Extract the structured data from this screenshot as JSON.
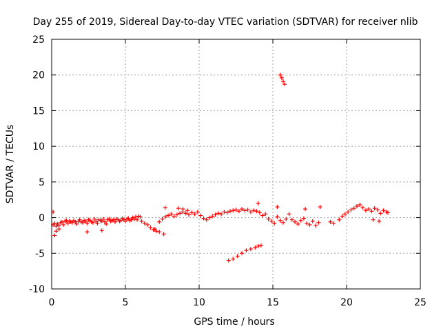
{
  "chart_data": {
    "type": "scatter",
    "title": "Day 255 of 2019, Sidereal Day-to-day VTEC variation (SDTVAR) for receiver nlib",
    "xlabel": "GPS time / hours",
    "ylabel": "SDTVAR / TECUs",
    "xlim": [
      0,
      25
    ],
    "ylim": [
      -10,
      25
    ],
    "xticks": [
      0,
      5,
      10,
      15,
      20,
      25
    ],
    "yticks": [
      -10,
      -5,
      0,
      5,
      10,
      15,
      20,
      25
    ],
    "grid": true,
    "marker": "+",
    "series": [
      {
        "name": "SDTVAR",
        "color": "#ff0000",
        "x": [
          0.1,
          0.2,
          0.3,
          0.4,
          0.5,
          0.6,
          0.7,
          0.8,
          0.9,
          1.0,
          1.1,
          1.2,
          1.3,
          1.4,
          1.5,
          1.6,
          1.7,
          1.8,
          1.9,
          2.0,
          2.1,
          2.2,
          2.3,
          2.4,
          2.5,
          2.6,
          2.7,
          2.8,
          2.9,
          3.0,
          3.1,
          3.2,
          3.3,
          3.4,
          3.5,
          3.6,
          3.7,
          3.8,
          3.9,
          4.0,
          4.1,
          4.2,
          4.3,
          4.4,
          4.5,
          4.6,
          4.7,
          4.8,
          4.9,
          5.0,
          5.1,
          5.2,
          5.3,
          5.4,
          5.5,
          5.6,
          5.7,
          5.8,
          5.9,
          6.0,
          6.1,
          6.3,
          6.5,
          6.7,
          6.9,
          7.1,
          7.3,
          7.5,
          7.7,
          7.9,
          8.1,
          8.3,
          8.5,
          8.7,
          8.9,
          9.1,
          9.3,
          9.5,
          9.7,
          9.9,
          10.1,
          10.3,
          10.5,
          10.7,
          10.9,
          11.1,
          11.3,
          11.5,
          11.7,
          11.9,
          12.1,
          12.3,
          12.5,
          12.7,
          12.9,
          13.1,
          13.3,
          13.5,
          13.7,
          13.9,
          14.1,
          14.3,
          14.5,
          14.7,
          14.9,
          15.1,
          15.3,
          15.5,
          15.7,
          15.9,
          16.1,
          16.3,
          16.5,
          16.7,
          16.9,
          17.1,
          17.3,
          17.5,
          17.7,
          17.9,
          18.1,
          18.9,
          19.1,
          19.5,
          19.7,
          19.9,
          20.1,
          20.3,
          20.5,
          20.7,
          20.9,
          21.1,
          21.3,
          21.5,
          21.7,
          21.9,
          22.1,
          22.3,
          22.5,
          22.7,
          22.8,
          0.2,
          0.3,
          0.5,
          2.4,
          3.4,
          7.0,
          7.3,
          7.6,
          8.6,
          9.2,
          12.0,
          12.3,
          12.6,
          12.9,
          13.2,
          13.5,
          13.8,
          14.0,
          14.2,
          15.5,
          15.6,
          15.7,
          15.8,
          0.1,
          7.7,
          8.9,
          14.0,
          15.3,
          17.2,
          18.2,
          21.8,
          22.2
        ],
        "y": [
          -1.0,
          -0.8,
          -1.2,
          -0.9,
          -1.1,
          -0.7,
          -0.6,
          -1.0,
          -0.5,
          -0.4,
          -0.8,
          -0.5,
          -0.6,
          -0.7,
          -0.4,
          -0.6,
          -0.9,
          -0.5,
          -0.3,
          -0.6,
          -0.7,
          -0.4,
          -0.5,
          -0.8,
          -0.3,
          -0.4,
          -0.6,
          -0.7,
          -0.2,
          -0.5,
          -0.8,
          -0.3,
          -0.4,
          -0.5,
          -0.2,
          -0.6,
          -0.9,
          -0.3,
          -0.2,
          -0.5,
          -0.4,
          -0.3,
          -0.6,
          -0.2,
          -0.3,
          -0.5,
          -0.4,
          -0.1,
          -0.3,
          -0.5,
          -0.2,
          -0.1,
          -0.4,
          -0.3,
          0.0,
          -0.2,
          0.1,
          -0.3,
          0.2,
          0.1,
          -0.5,
          -0.8,
          -1.0,
          -1.4,
          -1.7,
          -1.9,
          -0.6,
          -0.2,
          0.1,
          0.3,
          0.5,
          0.2,
          0.4,
          0.6,
          0.8,
          0.6,
          0.4,
          0.7,
          0.5,
          0.8,
          0.3,
          -0.1,
          -0.3,
          0.0,
          0.2,
          0.4,
          0.6,
          0.5,
          0.8,
          0.7,
          0.9,
          1.0,
          1.1,
          0.9,
          1.2,
          1.0,
          1.1,
          0.8,
          1.0,
          0.9,
          0.7,
          0.3,
          0.5,
          -0.2,
          -0.5,
          -0.8,
          0.1,
          -0.4,
          -0.7,
          -0.2,
          0.5,
          -0.3,
          -0.6,
          -0.9,
          -0.4,
          -0.1,
          -0.8,
          -1.0,
          -0.5,
          -1.1,
          -0.7,
          -0.6,
          -0.8,
          -0.3,
          0.2,
          0.5,
          0.8,
          1.1,
          1.3,
          1.6,
          1.8,
          1.4,
          1.0,
          1.2,
          0.9,
          1.3,
          1.1,
          0.6,
          1.0,
          0.8,
          0.7,
          -2.5,
          -1.9,
          -1.6,
          -2.0,
          -1.8,
          -1.6,
          -2.0,
          -2.3,
          1.3,
          1.0,
          -6.0,
          -5.8,
          -5.4,
          -5.0,
          -4.6,
          -4.4,
          -4.2,
          -4.0,
          -3.9,
          20.0,
          19.6,
          19.1,
          18.7,
          0.8,
          1.4,
          1.2,
          2.0,
          1.5,
          1.2,
          1.5,
          -0.3,
          -0.5
        ]
      }
    ]
  }
}
